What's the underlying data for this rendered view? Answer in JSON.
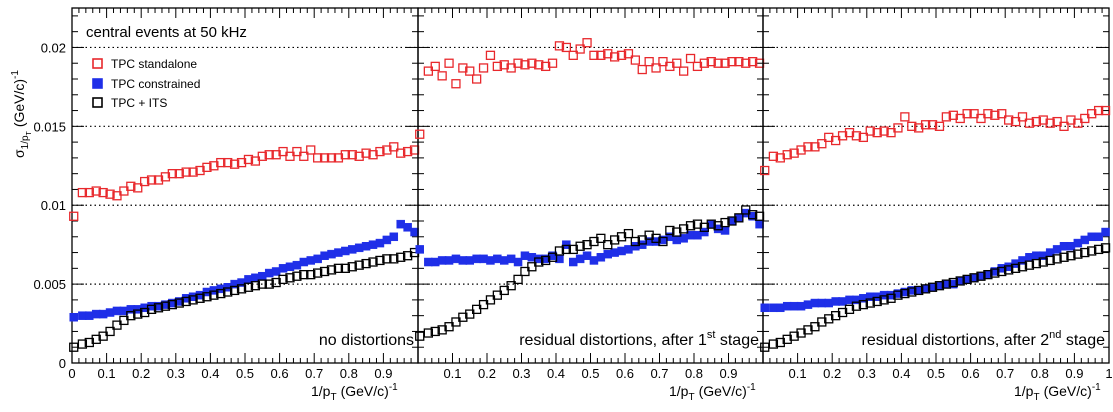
{
  "figure": {
    "ylabel_prefix": "σ",
    "ylabel_sub": "1/p",
    "ylabel_subsub": "T",
    "ylabel_unit": "(GeV/c)",
    "ylabel_exp": "-1",
    "xlabel_prefix": "1/p",
    "xlabel_sub": "T",
    "xlabel_unit": "(GeV/c)",
    "xlabel_exp": "-1",
    "header_text": "central events at 50 kHz",
    "colors": {
      "standalone": "#e8282c",
      "constrained": "#1f2fe8",
      "its": "#000000",
      "grid": "#000000"
    }
  },
  "legend": [
    {
      "label": "TPC standalone",
      "style": "open-square",
      "color": "#e8282c"
    },
    {
      "label": "TPC constrained",
      "style": "filled-square",
      "color": "#1f2fe8"
    },
    {
      "label": "TPC + ITS",
      "style": "open-square",
      "color": "#000000"
    }
  ],
  "chart_data": [
    {
      "type": "scatter",
      "panel_label": {
        "text": "no distortions",
        "sup": "",
        "suffix": ""
      },
      "xlabel": "1/p_T (GeV/c)^-1",
      "ylabel": "σ_1/pT (GeV/c)^-1",
      "xlim": [
        0,
        1
      ],
      "ylim": [
        0,
        0.0225
      ],
      "x_ticks": [
        "0",
        "0.1",
        "0.2",
        "0.3",
        "0.4",
        "0.5",
        "0.6",
        "0.7",
        "0.8",
        "0.9"
      ],
      "y_ticks": [
        "0",
        "0.005",
        "0.01",
        "0.015",
        "0.02"
      ],
      "grid": "horizontal dotted",
      "x": [
        0.005,
        0.03,
        0.05,
        0.07,
        0.09,
        0.11,
        0.13,
        0.15,
        0.17,
        0.19,
        0.21,
        0.23,
        0.25,
        0.27,
        0.29,
        0.31,
        0.33,
        0.35,
        0.37,
        0.39,
        0.41,
        0.43,
        0.45,
        0.47,
        0.49,
        0.51,
        0.53,
        0.55,
        0.57,
        0.59,
        0.61,
        0.63,
        0.65,
        0.67,
        0.69,
        0.71,
        0.73,
        0.75,
        0.77,
        0.79,
        0.81,
        0.83,
        0.85,
        0.87,
        0.89,
        0.91,
        0.93,
        0.95,
        0.97,
        0.99
      ],
      "series": [
        {
          "name": "TPC standalone",
          "values": [
            0.0093,
            0.0108,
            0.0108,
            0.0109,
            0.0108,
            0.0107,
            0.0106,
            0.0109,
            0.0112,
            0.0111,
            0.0115,
            0.0116,
            0.0116,
            0.0118,
            0.012,
            0.012,
            0.0121,
            0.0121,
            0.0122,
            0.0124,
            0.0125,
            0.0127,
            0.0127,
            0.0126,
            0.0127,
            0.0129,
            0.0128,
            0.0131,
            0.0132,
            0.0132,
            0.0134,
            0.0131,
            0.0134,
            0.0131,
            0.0135,
            0.013,
            0.013,
            0.013,
            0.013,
            0.0132,
            0.0132,
            0.0131,
            0.0133,
            0.0132,
            0.0134,
            0.0135,
            0.0137,
            0.0133,
            0.0134,
            0.0135
          ]
        },
        {
          "name": "TPC constrained",
          "values": [
            0.0029,
            0.003,
            0.003,
            0.0031,
            0.0031,
            0.0032,
            0.0033,
            0.0033,
            0.0034,
            0.0034,
            0.0035,
            0.0036,
            0.0036,
            0.0037,
            0.0038,
            0.0039,
            0.0041,
            0.0042,
            0.0043,
            0.0045,
            0.0046,
            0.0047,
            0.0048,
            0.005,
            0.0051,
            0.0053,
            0.0054,
            0.0055,
            0.0057,
            0.0058,
            0.006,
            0.0061,
            0.0062,
            0.0064,
            0.0065,
            0.0066,
            0.0068,
            0.0069,
            0.007,
            0.0071,
            0.0072,
            0.0073,
            0.0074,
            0.0075,
            0.0076,
            0.0078,
            0.008,
            0.0088,
            0.0086,
            0.0083
          ]
        },
        {
          "name": "TPC + ITS",
          "values": [
            0.001,
            0.0012,
            0.0013,
            0.0015,
            0.0017,
            0.002,
            0.0024,
            0.0027,
            0.003,
            0.0031,
            0.0032,
            0.0034,
            0.0035,
            0.0036,
            0.0037,
            0.0038,
            0.0039,
            0.004,
            0.0041,
            0.0042,
            0.0043,
            0.0044,
            0.0045,
            0.0046,
            0.0047,
            0.0048,
            0.0049,
            0.005,
            0.005,
            0.0051,
            0.0053,
            0.0054,
            0.0055,
            0.0056,
            0.0056,
            0.0057,
            0.0058,
            0.0059,
            0.006,
            0.006,
            0.0061,
            0.0062,
            0.0063,
            0.0064,
            0.0065,
            0.0066,
            0.0066,
            0.0067,
            0.0068,
            0.007
          ]
        }
      ]
    },
    {
      "type": "scatter",
      "panel_label": {
        "text": "residual distortions, after 1",
        "sup": "st",
        "suffix": " stage"
      },
      "xlabel": "1/p_T (GeV/c)^-1",
      "ylabel": "σ_1/pT (GeV/c)^-1",
      "xlim": [
        0,
        1
      ],
      "ylim": [
        0,
        0.0225
      ],
      "x_ticks": [
        "0.1",
        "0.2",
        "0.3",
        "0.4",
        "0.5",
        "0.6",
        "0.7",
        "0.8",
        "0.9"
      ],
      "grid": "horizontal dotted",
      "x": [
        0.005,
        0.03,
        0.05,
        0.07,
        0.09,
        0.11,
        0.13,
        0.15,
        0.17,
        0.19,
        0.21,
        0.23,
        0.25,
        0.27,
        0.29,
        0.31,
        0.33,
        0.35,
        0.37,
        0.39,
        0.41,
        0.43,
        0.45,
        0.47,
        0.49,
        0.51,
        0.53,
        0.55,
        0.57,
        0.59,
        0.61,
        0.63,
        0.65,
        0.67,
        0.69,
        0.71,
        0.73,
        0.75,
        0.77,
        0.79,
        0.81,
        0.83,
        0.85,
        0.87,
        0.89,
        0.91,
        0.93,
        0.95,
        0.97,
        0.99
      ],
      "series": [
        {
          "name": "TPC standalone",
          "values": [
            0.0145,
            0.0185,
            0.0188,
            0.0182,
            0.019,
            0.0177,
            0.0187,
            0.0185,
            0.018,
            0.0187,
            0.0195,
            0.0188,
            0.0189,
            0.0187,
            0.019,
            0.0189,
            0.019,
            0.0189,
            0.0188,
            0.019,
            0.0201,
            0.02,
            0.0195,
            0.0199,
            0.0203,
            0.0195,
            0.0195,
            0.0196,
            0.0194,
            0.0195,
            0.0196,
            0.0192,
            0.0186,
            0.0191,
            0.0187,
            0.0191,
            0.0188,
            0.019,
            0.0185,
            0.0193,
            0.0188,
            0.019,
            0.0191,
            0.019,
            0.019,
            0.0191,
            0.0191,
            0.019,
            0.0191,
            0.019
          ]
        },
        {
          "name": "TPC constrained",
          "values": [
            0.0072,
            0.0064,
            0.0064,
            0.0065,
            0.0065,
            0.0066,
            0.0065,
            0.0065,
            0.0066,
            0.0066,
            0.0065,
            0.0066,
            0.0065,
            0.0066,
            0.0064,
            0.0068,
            0.0067,
            0.0066,
            0.0066,
            0.0068,
            0.0066,
            0.0075,
            0.0064,
            0.0066,
            0.0068,
            0.0065,
            0.0067,
            0.0069,
            0.007,
            0.0071,
            0.0072,
            0.0074,
            0.0075,
            0.0077,
            0.0077,
            0.0078,
            0.008,
            0.0078,
            0.0079,
            0.0081,
            0.0081,
            0.0083,
            0.0088,
            0.0085,
            0.0084,
            0.009,
            0.0092,
            0.0095,
            0.0093,
            0.0088
          ]
        },
        {
          "name": "TPC + ITS",
          "values": [
            0.0017,
            0.0019,
            0.002,
            0.0021,
            0.0023,
            0.0026,
            0.0029,
            0.0031,
            0.0034,
            0.0037,
            0.004,
            0.0043,
            0.0046,
            0.0049,
            0.0053,
            0.0058,
            0.0061,
            0.0064,
            0.0065,
            0.0067,
            0.0071,
            0.0072,
            0.0072,
            0.0074,
            0.0075,
            0.0077,
            0.0079,
            0.0075,
            0.0078,
            0.008,
            0.0082,
            0.0077,
            0.0078,
            0.0081,
            0.0079,
            0.0077,
            0.0084,
            0.0083,
            0.0085,
            0.0087,
            0.0088,
            0.0086,
            0.0088,
            0.0087,
            0.0089,
            0.009,
            0.0092,
            0.0097,
            0.0094,
            0.0093
          ]
        }
      ]
    },
    {
      "type": "scatter",
      "panel_label": {
        "text": "residual distortions, after 2",
        "sup": "nd",
        "suffix": " stage"
      },
      "xlabel": "1/p_T (GeV/c)^-1",
      "ylabel": "σ_1/pT (GeV/c)^-1",
      "xlim": [
        0,
        1
      ],
      "ylim": [
        0,
        0.0225
      ],
      "x_ticks": [
        "0.1",
        "0.2",
        "0.3",
        "0.4",
        "0.5",
        "0.6",
        "0.7",
        "0.8",
        "0.9",
        "1"
      ],
      "grid": "horizontal dotted",
      "x": [
        0.005,
        0.03,
        0.05,
        0.07,
        0.09,
        0.11,
        0.13,
        0.15,
        0.17,
        0.19,
        0.21,
        0.23,
        0.25,
        0.27,
        0.29,
        0.31,
        0.33,
        0.35,
        0.37,
        0.39,
        0.41,
        0.43,
        0.45,
        0.47,
        0.49,
        0.51,
        0.53,
        0.55,
        0.57,
        0.59,
        0.61,
        0.63,
        0.65,
        0.67,
        0.69,
        0.71,
        0.73,
        0.75,
        0.77,
        0.79,
        0.81,
        0.83,
        0.85,
        0.87,
        0.89,
        0.91,
        0.93,
        0.95,
        0.97,
        0.99
      ],
      "series": [
        {
          "name": "TPC standalone",
          "values": [
            0.0122,
            0.0131,
            0.013,
            0.0132,
            0.0133,
            0.0135,
            0.0137,
            0.0137,
            0.0139,
            0.0143,
            0.0141,
            0.0144,
            0.0146,
            0.0144,
            0.0143,
            0.0147,
            0.0146,
            0.0147,
            0.0146,
            0.0149,
            0.0156,
            0.015,
            0.0149,
            0.0151,
            0.0151,
            0.015,
            0.0156,
            0.0157,
            0.0155,
            0.0158,
            0.0158,
            0.0155,
            0.0158,
            0.0157,
            0.0158,
            0.0154,
            0.0153,
            0.0156,
            0.0152,
            0.0153,
            0.0154,
            0.0152,
            0.0153,
            0.015,
            0.0154,
            0.0152,
            0.0155,
            0.0158,
            0.016,
            0.016
          ]
        },
        {
          "name": "TPC constrained",
          "values": [
            0.0035,
            0.0035,
            0.0035,
            0.0036,
            0.0036,
            0.0036,
            0.0037,
            0.0038,
            0.0038,
            0.0038,
            0.0039,
            0.0039,
            0.004,
            0.004,
            0.0041,
            0.0042,
            0.0042,
            0.0043,
            0.0043,
            0.0044,
            0.0045,
            0.0046,
            0.0046,
            0.0047,
            0.0048,
            0.0049,
            0.005,
            0.005,
            0.0052,
            0.0053,
            0.0054,
            0.0055,
            0.0056,
            0.0058,
            0.006,
            0.0061,
            0.0063,
            0.0065,
            0.0067,
            0.0068,
            0.0068,
            0.007,
            0.0072,
            0.0074,
            0.0074,
            0.0076,
            0.0078,
            0.008,
            0.008,
            0.0083
          ]
        },
        {
          "name": "TPC + ITS",
          "values": [
            0.001,
            0.0012,
            0.0013,
            0.0015,
            0.0017,
            0.0019,
            0.0021,
            0.0023,
            0.0026,
            0.0028,
            0.003,
            0.0032,
            0.0034,
            0.0036,
            0.0037,
            0.0038,
            0.0039,
            0.004,
            0.0041,
            0.0043,
            0.0044,
            0.0045,
            0.0046,
            0.0047,
            0.0048,
            0.0049,
            0.005,
            0.0051,
            0.0052,
            0.0053,
            0.0054,
            0.0055,
            0.0056,
            0.0057,
            0.0058,
            0.0059,
            0.006,
            0.0061,
            0.0062,
            0.0063,
            0.0064,
            0.0065,
            0.0066,
            0.0067,
            0.0068,
            0.0069,
            0.007,
            0.0071,
            0.0072,
            0.0073
          ]
        }
      ]
    }
  ]
}
